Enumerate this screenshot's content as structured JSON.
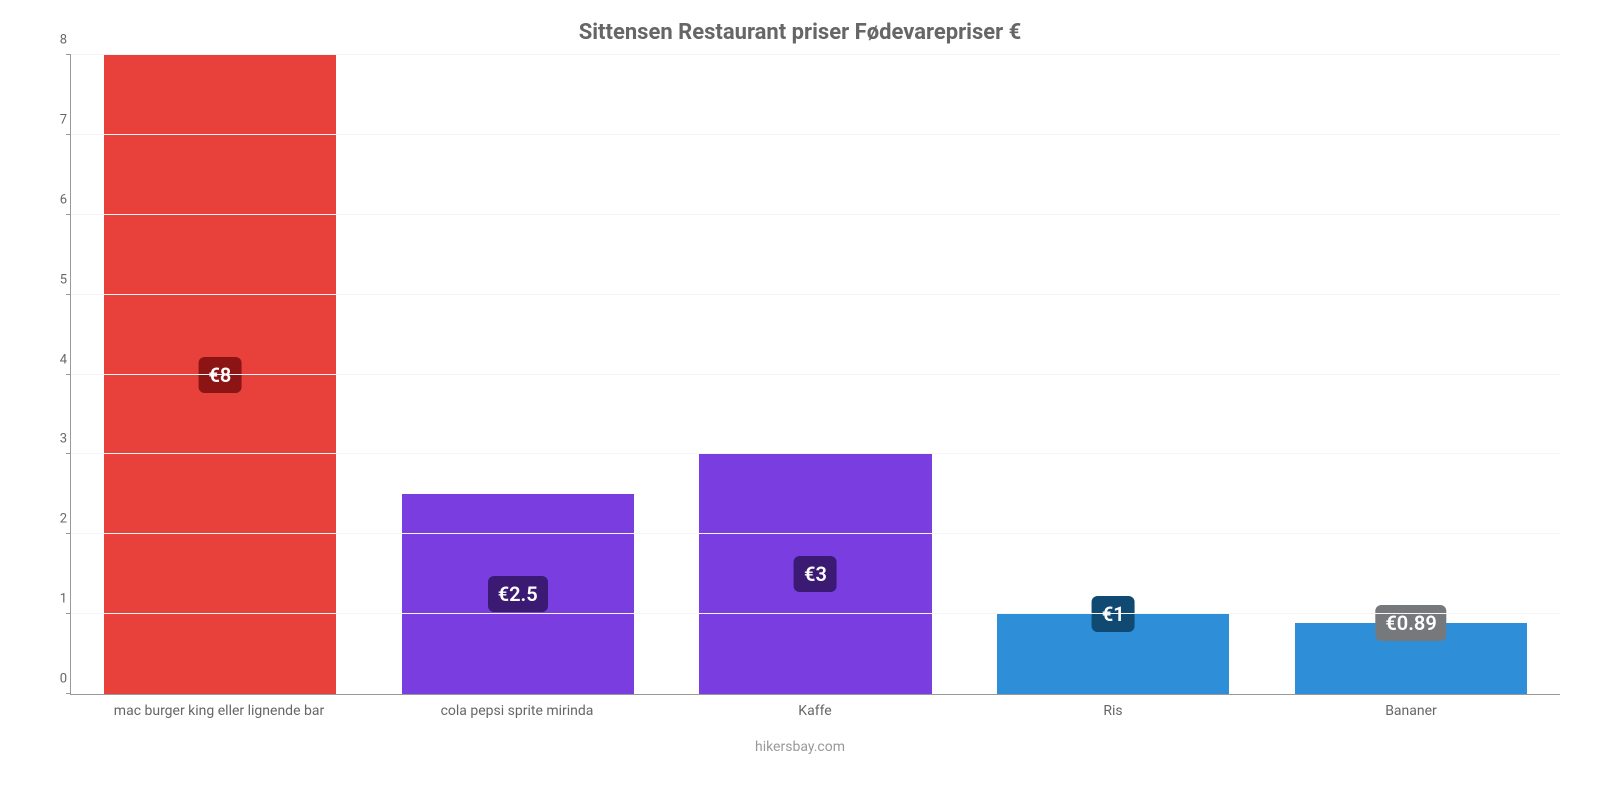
{
  "chart": {
    "type": "bar",
    "title": "Sittensen Restaurant priser Fødevarepriser €",
    "title_fontsize": 22,
    "title_color": "#666666",
    "credit": "hikersbay.com",
    "credit_color": "#999999",
    "background_color": "#ffffff",
    "grid_color": "#f5f5f5",
    "axis_color": "#999999",
    "tick_color": "#666666",
    "tick_fontsize": 13,
    "xlabel_fontsize": 14,
    "ylim": [
      0,
      8
    ],
    "ytick_step": 1,
    "bar_width": 0.78,
    "label_fontsize": 20,
    "label_text_color": "#ffffff",
    "label_radius": 6,
    "categories": [
      "mac burger king eller lignende bar",
      "cola pepsi sprite mirinda",
      "Kaffe",
      "Ris",
      "Bananer"
    ],
    "values": [
      8,
      2.5,
      3,
      1,
      0.89
    ],
    "value_labels": [
      "€8",
      "€2.5",
      "€3",
      "€1",
      "€0.89"
    ],
    "bar_colors": [
      "#e8403a",
      "#7a3ee0",
      "#7a3ee0",
      "#2e8ed7",
      "#2e8ed7"
    ],
    "label_bg_colors": [
      "#8c1414",
      "#3a1a73",
      "#3a1a73",
      "#104a73",
      "#75797c"
    ]
  }
}
